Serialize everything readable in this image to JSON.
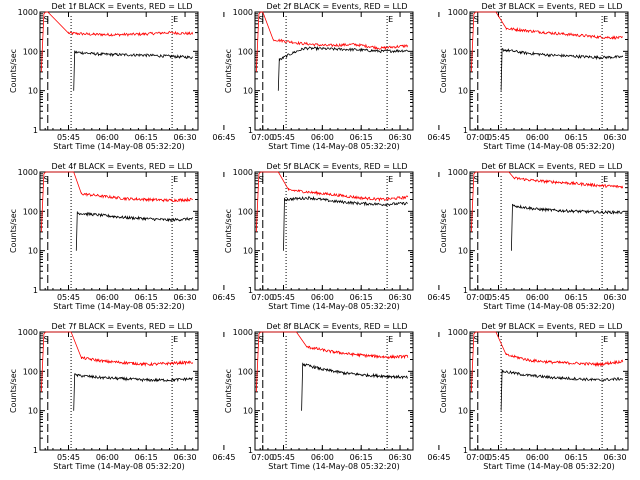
{
  "chart_data": [
    {
      "type": "line",
      "title": "Det 1f BLACK = Events, RED = LLD",
      "xlabel": "Start Time (14-May-08 05:32:20)",
      "ylabel": "Counts/sec",
      "y_scale": "log",
      "ylim": [
        1,
        1000
      ],
      "y_ticks": [
        "1",
        "10",
        "100",
        "1000"
      ],
      "x_range_minutes": [
        34,
        95
      ],
      "x_ticks": [
        "05:45",
        "06:00",
        "06:15",
        "06:30",
        "06:45",
        "07:00"
      ],
      "markers": [
        {
          "label": "S",
          "minute": 35
        },
        {
          "label": "E",
          "minute": 85
        }
      ],
      "vlines": [
        {
          "minute": 37,
          "style": "long-dash"
        },
        {
          "minute": 46,
          "style": "dotted"
        },
        {
          "minute": 85,
          "style": "dotted"
        }
      ],
      "series": [
        {
          "color": "#ff0000",
          "plateau": 280,
          "peak_minute": 37,
          "decay_to": 45,
          "decay_start": 1000,
          "trend": [
            290,
            270,
            265,
            275,
            300,
            280
          ]
        },
        {
          "color": "#000000",
          "plateau": 75,
          "start_minute": 47,
          "trend": [
            95,
            85,
            82,
            80,
            75,
            70
          ]
        }
      ]
    },
    {
      "type": "line",
      "title": "Det 2f BLACK = Events, RED = LLD",
      "xlabel": "Start Time (14-May-08 05:32:20)",
      "ylabel": "Counts/sec",
      "y_scale": "log",
      "ylim": [
        1,
        1000
      ],
      "y_ticks": [
        "1",
        "10",
        "100",
        "1000"
      ],
      "x_range_minutes": [
        34,
        95
      ],
      "x_ticks": [
        "05:45",
        "06:00",
        "06:15",
        "06:30",
        "06:45",
        "07:00"
      ],
      "markers": [
        {
          "label": "S",
          "minute": 35
        },
        {
          "label": "E",
          "minute": 85
        }
      ],
      "vlines": [
        {
          "minute": 37,
          "style": "long-dash"
        },
        {
          "minute": 46,
          "style": "dotted"
        },
        {
          "minute": 85,
          "style": "dotted"
        }
      ],
      "series": [
        {
          "color": "#ff0000",
          "plateau": 150,
          "peak_minute": 37,
          "decay_to": 41,
          "decay_start": 1000,
          "trend": [
            200,
            160,
            140,
            150,
            120,
            140
          ]
        },
        {
          "color": "#000000",
          "plateau": 110,
          "start_minute": 43,
          "trend": [
            60,
            120,
            115,
            110,
            100,
            105
          ]
        }
      ]
    },
    {
      "type": "line",
      "title": "Det 3f BLACK = Events, RED = LLD",
      "xlabel": "Start Time (14-May-08 05:32:20)",
      "ylabel": "Counts/sec",
      "y_scale": "log",
      "ylim": [
        1,
        1000
      ],
      "y_ticks": [
        "1",
        "10",
        "100",
        "1000"
      ],
      "x_range_minutes": [
        34,
        95
      ],
      "x_ticks": [
        "05:45",
        "06:00",
        "06:15",
        "06:30",
        "06:45",
        "07:00"
      ],
      "markers": [
        {
          "label": "S",
          "minute": 35
        },
        {
          "label": "E",
          "minute": 85
        }
      ],
      "vlines": [
        {
          "minute": 37,
          "style": "long-dash"
        },
        {
          "minute": 46,
          "style": "dotted"
        },
        {
          "minute": 85,
          "style": "dotted"
        }
      ],
      "series": [
        {
          "color": "#ff0000",
          "plateau": 230,
          "peak_minute": 44,
          "decay_to": 48,
          "decay_start": 1000,
          "trend": [
            380,
            330,
            290,
            260,
            230,
            220
          ]
        },
        {
          "color": "#000000",
          "plateau": 70,
          "start_minute": 46,
          "trend": [
            110,
            90,
            80,
            75,
            70,
            72
          ]
        }
      ]
    },
    {
      "type": "line",
      "title": "Det 4f BLACK = Events, RED = LLD",
      "xlabel": "Start Time (14-May-08 05:32:20)",
      "ylabel": "Counts/sec",
      "y_scale": "log",
      "ylim": [
        1,
        1000
      ],
      "y_ticks": [
        "1",
        "10",
        "100",
        "1000"
      ],
      "x_range_minutes": [
        34,
        95
      ],
      "x_ticks": [
        "05:45",
        "06:00",
        "06:15",
        "06:30",
        "06:45",
        "07:00"
      ],
      "markers": [
        {
          "label": "S",
          "minute": 35
        },
        {
          "label": "E",
          "minute": 85
        }
      ],
      "vlines": [
        {
          "minute": 37,
          "style": "long-dash"
        },
        {
          "minute": 46,
          "style": "dotted"
        },
        {
          "minute": 85,
          "style": "dotted"
        }
      ],
      "series": [
        {
          "color": "#ff0000",
          "plateau": 200,
          "peak_minute": 47,
          "decay_to": 50,
          "decay_start": 1000,
          "trend": [
            280,
            240,
            210,
            200,
            190,
            200
          ]
        },
        {
          "color": "#000000",
          "plateau": 65,
          "start_minute": 48,
          "trend": [
            90,
            80,
            70,
            65,
            60,
            65
          ]
        }
      ]
    },
    {
      "type": "line",
      "title": "Det 5f BLACK = Events, RED = LLD",
      "xlabel": "Start Time (14-May-08 05:32:20)",
      "ylabel": "Counts/sec",
      "y_scale": "log",
      "ylim": [
        1,
        1000
      ],
      "y_ticks": [
        "1",
        "10",
        "100",
        "1000"
      ],
      "x_range_minutes": [
        34,
        95
      ],
      "x_ticks": [
        "05:45",
        "06:00",
        "06:15",
        "06:30",
        "06:45",
        "07:00"
      ],
      "markers": [
        {
          "label": "S",
          "minute": 35
        },
        {
          "label": "E",
          "minute": 85
        }
      ],
      "vlines": [
        {
          "minute": 37,
          "style": "long-dash"
        },
        {
          "minute": 46,
          "style": "dotted"
        },
        {
          "minute": 85,
          "style": "dotted"
        }
      ],
      "series": [
        {
          "color": "#ff0000",
          "plateau": 200,
          "peak_minute": 43,
          "decay_to": 47,
          "decay_start": 1000,
          "trend": [
            350,
            300,
            260,
            220,
            200,
            230
          ]
        },
        {
          "color": "#000000",
          "plateau": 150,
          "start_minute": 45,
          "trend": [
            200,
            220,
            180,
            160,
            150,
            160
          ]
        }
      ]
    },
    {
      "type": "line",
      "title": "Det 6f BLACK = Events, RED = LLD",
      "xlabel": "Start Time (14-May-08 05:32:20)",
      "ylabel": "Counts/sec",
      "y_scale": "log",
      "ylim": [
        1,
        1000
      ],
      "y_ticks": [
        "1",
        "10",
        "100",
        "1000"
      ],
      "x_range_minutes": [
        34,
        95
      ],
      "x_ticks": [
        "05:45",
        "06:00",
        "06:15",
        "06:30",
        "06:45",
        "07:00"
      ],
      "markers": [
        {
          "label": "S",
          "minute": 35
        },
        {
          "label": "E",
          "minute": 85
        }
      ],
      "vlines": [
        {
          "minute": 37,
          "style": "long-dash"
        },
        {
          "minute": 46,
          "style": "dotted"
        },
        {
          "minute": 85,
          "style": "dotted"
        }
      ],
      "series": [
        {
          "color": "#ff0000",
          "plateau": 450,
          "peak_minute": 49,
          "decay_to": 51,
          "decay_start": 1000,
          "trend": [
            700,
            600,
            550,
            500,
            450,
            420
          ]
        },
        {
          "color": "#000000",
          "plateau": 95,
          "start_minute": 50,
          "trend": [
            140,
            115,
            105,
            100,
            95,
            95
          ]
        }
      ]
    },
    {
      "type": "line",
      "title": "Det 7f BLACK = Events, RED = LLD",
      "xlabel": "Start Time (14-May-08 05:32:20)",
      "ylabel": "Counts/sec",
      "y_scale": "log",
      "ylim": [
        1,
        1000
      ],
      "y_ticks": [
        "1",
        "10",
        "100",
        "1000"
      ],
      "x_range_minutes": [
        34,
        95
      ],
      "x_ticks": [
        "05:45",
        "06:00",
        "06:15",
        "06:30",
        "06:45",
        "07:00"
      ],
      "markers": [
        {
          "label": "S",
          "minute": 35
        },
        {
          "label": "E",
          "minute": 85
        }
      ],
      "vlines": [
        {
          "minute": 37,
          "style": "long-dash"
        },
        {
          "minute": 46,
          "style": "dotted"
        },
        {
          "minute": 85,
          "style": "dotted"
        }
      ],
      "series": [
        {
          "color": "#ff0000",
          "plateau": 160,
          "peak_minute": 46,
          "decay_to": 50,
          "decay_start": 1000,
          "trend": [
            220,
            180,
            165,
            150,
            160,
            170
          ]
        },
        {
          "color": "#000000",
          "plateau": 60,
          "start_minute": 47,
          "trend": [
            80,
            70,
            65,
            60,
            60,
            65
          ]
        }
      ]
    },
    {
      "type": "line",
      "title": "Det 8f BLACK = Events, RED = LLD",
      "xlabel": "Start Time (14-May-08 05:32:20)",
      "ylabel": "Counts/sec",
      "y_scale": "log",
      "ylim": [
        1,
        1000
      ],
      "y_ticks": [
        "1",
        "10",
        "100",
        "1000"
      ],
      "x_range_minutes": [
        34,
        95
      ],
      "x_ticks": [
        "05:45",
        "06:00",
        "06:15",
        "06:30",
        "06:45",
        "07:00"
      ],
      "markers": [
        {
          "label": "S",
          "minute": 35
        },
        {
          "label": "E",
          "minute": 85
        }
      ],
      "vlines": [
        {
          "minute": 37,
          "style": "long-dash"
        },
        {
          "minute": 46,
          "style": "dotted"
        },
        {
          "minute": 85,
          "style": "dotted"
        }
      ],
      "series": [
        {
          "color": "#ff0000",
          "plateau": 230,
          "peak_minute": 50,
          "decay_to": 54,
          "decay_start": 1000,
          "trend": [
            420,
            330,
            280,
            250,
            230,
            240
          ]
        },
        {
          "color": "#000000",
          "plateau": 75,
          "start_minute": 52,
          "trend": [
            150,
            110,
            90,
            80,
            75,
            70
          ]
        }
      ]
    },
    {
      "type": "line",
      "title": "Det 9f BLACK = Events, RED = LLD",
      "xlabel": "Start Time (14-May-08 05:32:20)",
      "ylabel": "Counts/sec",
      "y_scale": "log",
      "ylim": [
        1,
        1000
      ],
      "y_ticks": [
        "1",
        "10",
        "100",
        "1000"
      ],
      "x_range_minutes": [
        34,
        95
      ],
      "x_ticks": [
        "05:45",
        "06:00",
        "06:15",
        "06:30",
        "06:45",
        "07:00"
      ],
      "markers": [
        {
          "label": "S",
          "minute": 35
        },
        {
          "label": "E",
          "minute": 85
        }
      ],
      "vlines": [
        {
          "minute": 37,
          "style": "long-dash"
        },
        {
          "minute": 46,
          "style": "dotted"
        },
        {
          "minute": 85,
          "style": "dotted"
        }
      ],
      "series": [
        {
          "color": "#ff0000",
          "plateau": 160,
          "peak_minute": 44,
          "decay_to": 48,
          "decay_start": 1000,
          "trend": [
            260,
            190,
            170,
            160,
            150,
            180
          ]
        },
        {
          "color": "#000000",
          "plateau": 60,
          "start_minute": 46,
          "trend": [
            100,
            80,
            70,
            65,
            60,
            65
          ]
        }
      ]
    }
  ]
}
